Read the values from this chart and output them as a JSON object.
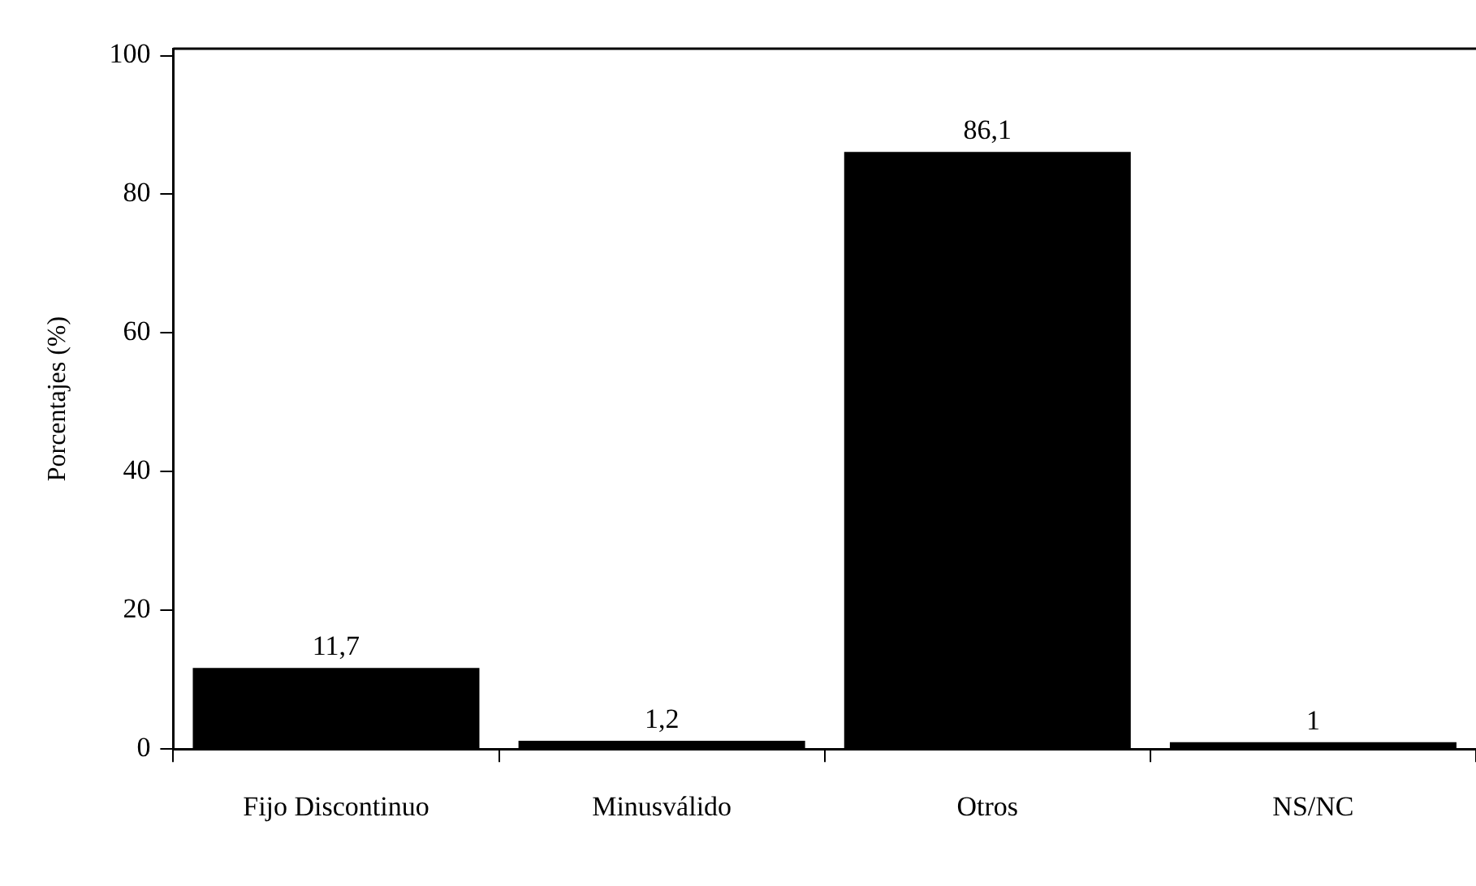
{
  "chart_data": {
    "type": "bar",
    "ylabel": "Porcentajes (%)",
    "categories": [
      "Fijo Discontinuo",
      "Minusválido",
      "Otros",
      "NS/NC"
    ],
    "values": [
      11.7,
      1.2,
      86.1,
      1
    ],
    "value_labels": [
      "11,7",
      "1,2",
      "86,1",
      "1"
    ],
    "color": "#000000",
    "ylim": [
      0,
      101
    ],
    "yticks": [
      0,
      20,
      40,
      60,
      80,
      100
    ],
    "grid": false,
    "legend": false
  }
}
